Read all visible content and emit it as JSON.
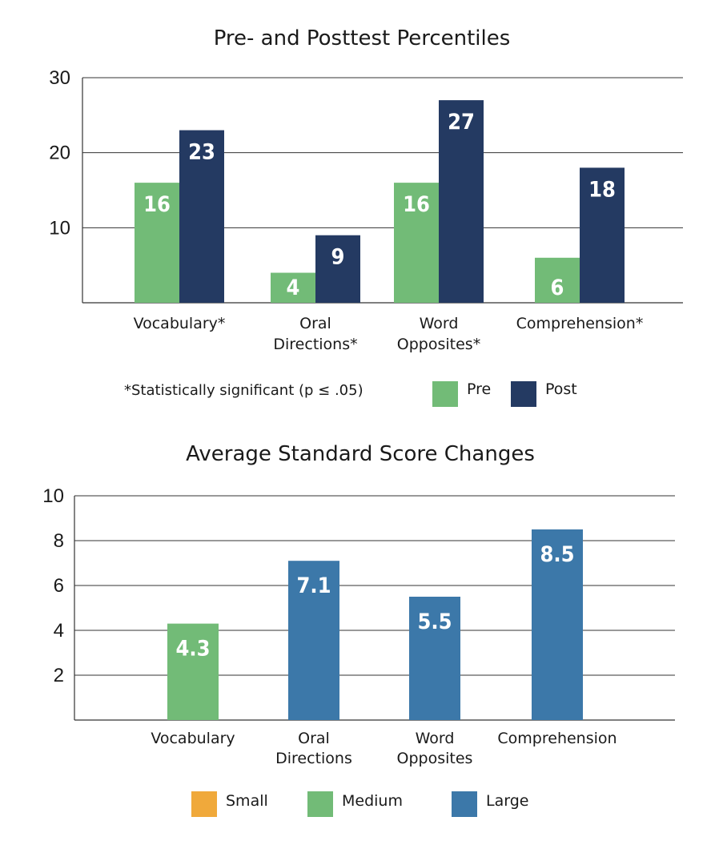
{
  "chart_data": [
    {
      "type": "bar",
      "title": "Pre- and Posttest Percentiles",
      "categories": [
        [
          "Vocabulary*"
        ],
        [
          "Oral",
          "Directions*"
        ],
        [
          "Word",
          "Opposites*"
        ],
        [
          "Comprehension*"
        ]
      ],
      "series": [
        {
          "name": "Pre",
          "values": [
            16,
            4,
            16,
            6
          ],
          "color": "#72bb77"
        },
        {
          "name": "Post",
          "values": [
            23,
            9,
            27,
            18
          ],
          "color": "#243a62"
        }
      ],
      "yticks": [
        10,
        20,
        30
      ],
      "ylim": [
        0,
        30
      ],
      "grid": true,
      "legend_position": "bottom-right",
      "footnote": "*Statistically significant (p ≤ .05)"
    },
    {
      "type": "bar",
      "title": "Average Standard Score Changes",
      "categories": [
        [
          "Vocabulary"
        ],
        [
          "Oral",
          "Directions"
        ],
        [
          "Word",
          "Opposites"
        ],
        [
          "Comprehension"
        ]
      ],
      "values": [
        4.3,
        7.1,
        5.5,
        8.5
      ],
      "value_labels": [
        "4.3",
        "7.1",
        "5.5",
        "8.5"
      ],
      "bar_effect_size": [
        "Medium",
        "Large",
        "Large",
        "Large"
      ],
      "yticks": [
        2,
        4,
        6,
        8,
        10
      ],
      "ylim": [
        0,
        10
      ],
      "grid": true,
      "legend": [
        {
          "name": "Small",
          "color": "#f0a93b"
        },
        {
          "name": "Medium",
          "color": "#72bb77"
        },
        {
          "name": "Large",
          "color": "#3c78a9"
        }
      ],
      "legend_position": "bottom"
    }
  ]
}
